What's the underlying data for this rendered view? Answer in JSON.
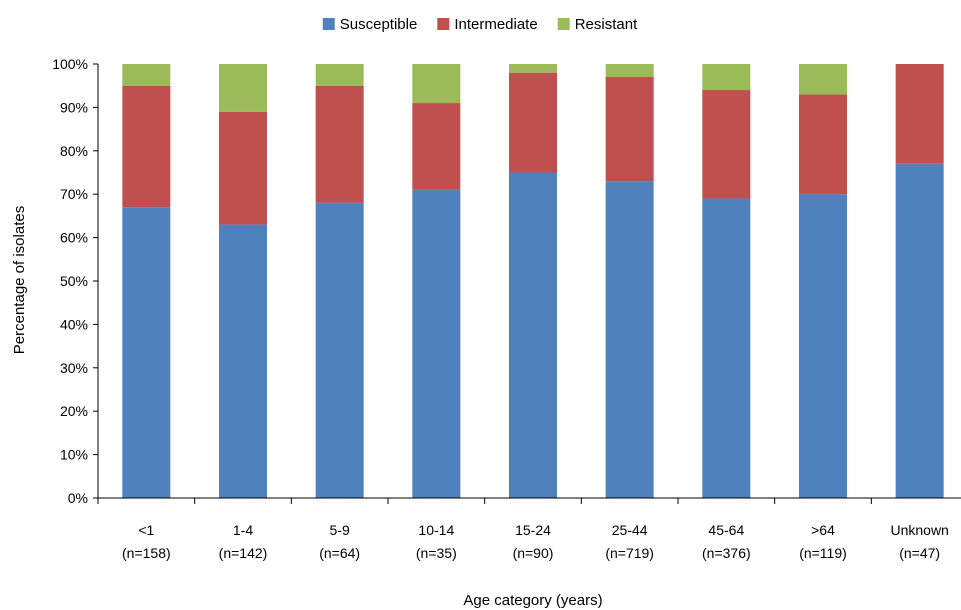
{
  "chart_data": {
    "type": "bar",
    "stacked": true,
    "title": "",
    "xlabel": "Age category (years)",
    "ylabel": "Percentage of isolates",
    "ylim": [
      0,
      100
    ],
    "y_ticks": [
      "0%",
      "10%",
      "20%",
      "30%",
      "40%",
      "50%",
      "60%",
      "70%",
      "80%",
      "90%",
      "100%"
    ],
    "categories": [
      {
        "name": "<1",
        "n": "(n=158)"
      },
      {
        "name": "1-4",
        "n": "(n=142)"
      },
      {
        "name": "5-9",
        "n": "(n=64)"
      },
      {
        "name": "10-14",
        "n": "(n=35)"
      },
      {
        "name": "15-24",
        "n": "(n=90)"
      },
      {
        "name": "25-44",
        "n": "(n=719)"
      },
      {
        "name": "45-64",
        "n": "(n=376)"
      },
      {
        "name": ">64",
        "n": "(n=119)"
      },
      {
        "name": "Unknown",
        "n": "(n=47)"
      }
    ],
    "series": [
      {
        "name": "Susceptible",
        "color": "#4F81BD",
        "values": [
          67,
          63,
          68,
          71,
          75,
          73,
          69,
          70,
          77
        ]
      },
      {
        "name": "Intermediate",
        "color": "#C0504D",
        "values": [
          28,
          26,
          27,
          20,
          23,
          24,
          25,
          23,
          23
        ]
      },
      {
        "name": "Resistant",
        "color": "#9BBB59",
        "values": [
          5,
          11,
          5,
          9,
          2,
          3,
          6,
          7,
          0
        ]
      }
    ],
    "legend_position": "top-center",
    "grid": false
  }
}
